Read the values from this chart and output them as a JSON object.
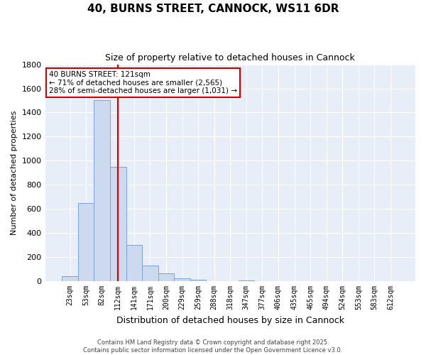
{
  "title": "40, BURNS STREET, CANNOCK, WS11 6DR",
  "subtitle": "Size of property relative to detached houses in Cannock",
  "xlabel": "Distribution of detached houses by size in Cannock",
  "ylabel": "Number of detached properties",
  "categories": [
    "23sqm",
    "53sqm",
    "82sqm",
    "112sqm",
    "141sqm",
    "171sqm",
    "200sqm",
    "229sqm",
    "259sqm",
    "288sqm",
    "318sqm",
    "347sqm",
    "377sqm",
    "406sqm",
    "435sqm",
    "465sqm",
    "494sqm",
    "524sqm",
    "553sqm",
    "583sqm",
    "612sqm"
  ],
  "values": [
    40,
    650,
    1500,
    950,
    300,
    130,
    65,
    25,
    10,
    0,
    0,
    5,
    0,
    0,
    0,
    0,
    0,
    0,
    0,
    0,
    0
  ],
  "bar_color": "#ccd9ee",
  "bar_edgecolor": "#7aa3d4",
  "fig_background_color": "#ffffff",
  "plot_background_color": "#e8eef8",
  "grid_color": "#ffffff",
  "vline_x": 3.0,
  "vline_color": "#cc0000",
  "annotation_line1": "40 BURNS STREET: 121sqm",
  "annotation_line2": "← 71% of detached houses are smaller (2,565)",
  "annotation_line3": "28% of semi-detached houses are larger (1,031) →",
  "annotation_box_facecolor": "#ffffff",
  "annotation_box_edgecolor": "#cc0000",
  "ylim": [
    0,
    1800
  ],
  "yticks": [
    0,
    200,
    400,
    600,
    800,
    1000,
    1200,
    1400,
    1600,
    1800
  ],
  "footer_line1": "Contains HM Land Registry data © Crown copyright and database right 2025.",
  "footer_line2": "Contains public sector information licensed under the Open Government Licence v3.0."
}
